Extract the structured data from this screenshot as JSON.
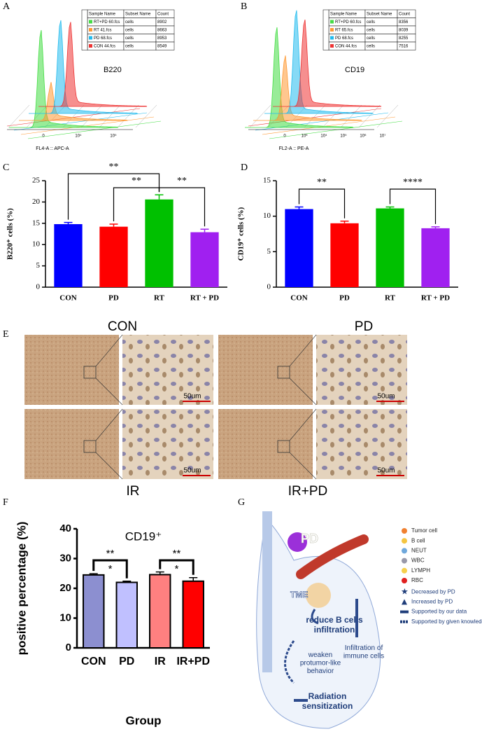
{
  "panels": {
    "a": "A",
    "b": "B",
    "c": "C",
    "d": "D",
    "e": "E",
    "f": "F",
    "g": "G"
  },
  "flow": [
    {
      "marker": "B220",
      "xlabel": "FL4-A :: APC-A",
      "xticks": [
        "0",
        "10⁴",
        "10⁵"
      ],
      "table": {
        "header": [
          "Sample Name",
          "Subset Name",
          "Count"
        ],
        "rows": [
          [
            "RT+PD 60.fcs",
            "cells",
            8902
          ],
          [
            "RT 41.fcs",
            "cells",
            8663
          ],
          [
            "PD 68.fcs",
            "cells",
            8953
          ],
          [
            "CON 44.fcs",
            "cells",
            8549
          ]
        ]
      }
    },
    {
      "marker": "CD19",
      "xlabel": "FL2-A :: PE-A",
      "xticks": [
        "0",
        "10³",
        "10⁴",
        "10⁵",
        "10⁶",
        "10⁷"
      ],
      "table": {
        "header": [
          "Sample Name",
          "Subset Name",
          "Count"
        ],
        "rows": [
          [
            "RT+PD 60.fcs",
            "cells",
            8356
          ],
          [
            "RT 65.fcs",
            "cells",
            8039
          ],
          [
            "PD 68.fcs",
            "cells",
            8255
          ],
          [
            "CON 44.fcs",
            "cells",
            7516
          ]
        ]
      }
    }
  ],
  "chart_data": [
    {
      "type": "bar",
      "ylabel": "B220⁺ cells (%)",
      "categories": [
        "CON",
        "PD",
        "RT",
        "RT + PD"
      ],
      "values": [
        14.8,
        14.2,
        20.6,
        12.9
      ],
      "errors": [
        0.4,
        0.6,
        1.1,
        0.7
      ],
      "colors": [
        "#0000ff",
        "#ff0000",
        "#00c000",
        "#a020f0"
      ],
      "ylim": [
        0,
        25
      ],
      "yticks": [
        0,
        5,
        10,
        15,
        20,
        25
      ],
      "comparisons": [
        {
          "groups": [
            "CON",
            "RT"
          ],
          "labels": [
            "**"
          ]
        },
        {
          "groups": [
            "PD",
            "RT"
          ],
          "labels": [
            "**"
          ]
        },
        {
          "groups": [
            "RT",
            "RT + PD"
          ],
          "labels": [
            "**"
          ]
        }
      ]
    },
    {
      "type": "bar",
      "ylabel": "CD19⁺ cells (%)",
      "categories": [
        "CON",
        "PD",
        "RT",
        "RT + PD"
      ],
      "values": [
        11.0,
        9.0,
        11.1,
        8.3
      ],
      "errors": [
        0.3,
        0.3,
        0.2,
        0.2
      ],
      "colors": [
        "#0000ff",
        "#ff0000",
        "#00c000",
        "#a020f0"
      ],
      "ylim": [
        0,
        15
      ],
      "yticks": [
        0,
        5,
        10,
        15
      ],
      "comparisons": [
        {
          "groups": [
            "CON",
            "PD"
          ],
          "labels": [
            "**"
          ]
        },
        {
          "groups": [
            "RT",
            "RT + PD"
          ],
          "labels": [
            "****"
          ]
        }
      ]
    },
    {
      "type": "bar",
      "title": "CD19⁺",
      "xlabel": "Group",
      "ylabel": "positive percentage (%)",
      "categories": [
        "CON",
        "PD",
        "IR",
        "IR+PD"
      ],
      "values": [
        24.5,
        22.0,
        24.6,
        22.4
      ],
      "errors": [
        0.4,
        0.4,
        0.9,
        1.2
      ],
      "colors": [
        "#8c8fd0",
        "#c0c0ff",
        "#ff8080",
        "#ff0000"
      ],
      "ylim": [
        0,
        40
      ],
      "yticks": [
        0,
        10,
        20,
        30,
        40
      ],
      "comparisons": [
        {
          "groups": [
            "CON",
            "PD"
          ],
          "labels": [
            "**",
            "*"
          ]
        },
        {
          "groups": [
            "IR",
            "IR+PD"
          ],
          "labels": [
            "**",
            "*"
          ]
        }
      ]
    }
  ],
  "histology": {
    "labels": [
      "CON",
      "PD",
      "IR",
      "IR+PD"
    ],
    "scale": "50um"
  },
  "diagram": {
    "legend": [
      "Tumor cell",
      "B cell",
      "NEUT",
      "WBC",
      "LYMPH",
      "RBC",
      "Decreased by PD",
      "Increased by PD",
      "Supported by our data",
      "Supported by given knowledge"
    ],
    "labels": {
      "pd": "PD",
      "tme": "TME",
      "reduce": "reduce B cells infiltration",
      "weaken": "weaken protumor-like behavior",
      "infiltration": "Infiltration of immune cells",
      "radiation": "Radiation sensitization"
    }
  }
}
